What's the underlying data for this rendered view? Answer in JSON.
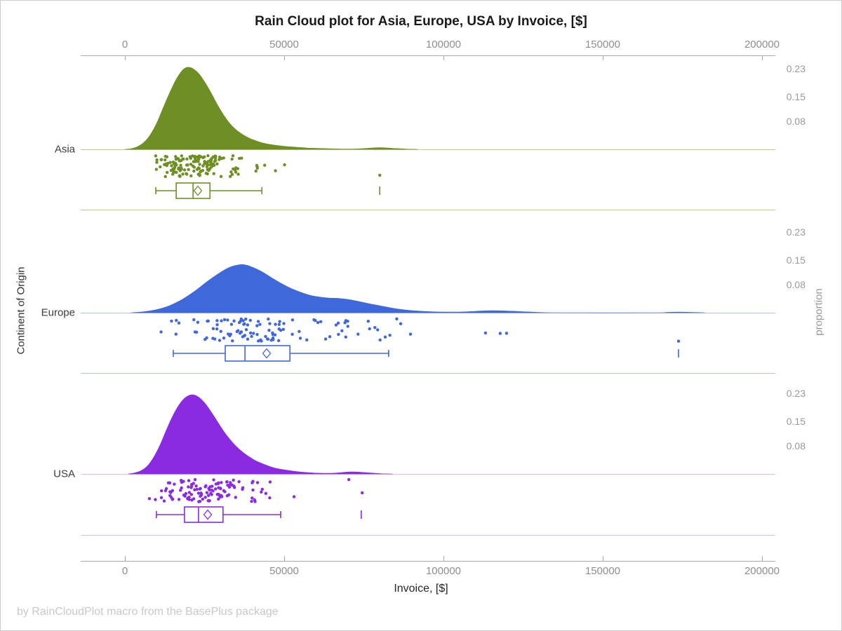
{
  "title": "Rain Cloud plot for Asia, Europe, USA by Invoice, [$]",
  "footer": "by RainCloudPlot macro from the BasePlus package",
  "axes": {
    "x_top": {
      "tick_labels": [
        "0",
        "50000",
        "100000",
        "150000",
        "200000"
      ]
    },
    "x_bottom": {
      "label": "Invoice, [$]",
      "tick_labels": [
        "0",
        "50000",
        "100000",
        "150000",
        "200000"
      ]
    },
    "y_left": {
      "label": "Continent of Origin",
      "categories": [
        "Asia",
        "Europe",
        "USA"
      ]
    },
    "y_right": {
      "label": "proportion",
      "tick_labels": [
        "0.23",
        "0.15",
        "0.08"
      ]
    }
  },
  "chart_data": {
    "type": "raincloud",
    "title": "Rain Cloud plot for Asia, Europe, USA by Invoice, [$]",
    "xlabel": "Invoice, [$]",
    "ylabel_left": "Continent of Origin",
    "ylabel_right": "proportion",
    "x_ticks": [
      0,
      50000,
      100000,
      150000,
      200000
    ],
    "x_range": [
      0,
      200000
    ],
    "proportion_ticks": [
      0.23,
      0.15,
      0.08
    ],
    "axis_color": "#a9a9a9",
    "groups": [
      {
        "name": "Asia",
        "color": "#6d8f23",
        "line_color": "#b9ca92",
        "density": [
          [
            0,
            0
          ],
          [
            2000,
            0.002
          ],
          [
            4000,
            0.008
          ],
          [
            6000,
            0.02
          ],
          [
            8000,
            0.042
          ],
          [
            10000,
            0.075
          ],
          [
            12000,
            0.118
          ],
          [
            14000,
            0.16
          ],
          [
            16000,
            0.198
          ],
          [
            18000,
            0.225
          ],
          [
            19500,
            0.234
          ],
          [
            21000,
            0.232
          ],
          [
            23000,
            0.218
          ],
          [
            25000,
            0.193
          ],
          [
            27000,
            0.162
          ],
          [
            29000,
            0.128
          ],
          [
            31000,
            0.098
          ],
          [
            33000,
            0.073
          ],
          [
            35000,
            0.055
          ],
          [
            37000,
            0.042
          ],
          [
            39000,
            0.032
          ],
          [
            41000,
            0.025
          ],
          [
            43000,
            0.019
          ],
          [
            45000,
            0.015
          ],
          [
            48000,
            0.011
          ],
          [
            51000,
            0.008
          ],
          [
            54000,
            0.006
          ],
          [
            57000,
            0.004
          ],
          [
            60000,
            0.003
          ],
          [
            64000,
            0.002
          ],
          [
            68000,
            0.001
          ],
          [
            72000,
            0.001
          ],
          [
            76000,
            0.003
          ],
          [
            80000,
            0.005
          ],
          [
            84000,
            0.003
          ],
          [
            88000,
            0.001
          ],
          [
            92000,
            0
          ]
        ],
        "box": {
          "whisker_low": 9700,
          "q1": 16100,
          "median": 21400,
          "mean": 22900,
          "q3": 26700,
          "whisker_high": 43000,
          "outliers": [
            80000
          ]
        },
        "rain": {
          "n": 150,
          "seed": 3,
          "sample_range": [
            7500,
            58000
          ],
          "outlier_points": [
            80000
          ]
        }
      },
      {
        "name": "Europe",
        "color": "#3f68da",
        "line_color": "#b3c1ea",
        "density": [
          [
            2000,
            0
          ],
          [
            6000,
            0.003
          ],
          [
            10000,
            0.009
          ],
          [
            14000,
            0.02
          ],
          [
            18000,
            0.038
          ],
          [
            22000,
            0.062
          ],
          [
            26000,
            0.09
          ],
          [
            30000,
            0.115
          ],
          [
            33000,
            0.13
          ],
          [
            36000,
            0.137
          ],
          [
            38000,
            0.136
          ],
          [
            40000,
            0.13
          ],
          [
            43000,
            0.117
          ],
          [
            46000,
            0.1
          ],
          [
            49000,
            0.084
          ],
          [
            52000,
            0.07
          ],
          [
            55000,
            0.059
          ],
          [
            58000,
            0.05
          ],
          [
            61000,
            0.045
          ],
          [
            64000,
            0.042
          ],
          [
            67000,
            0.041
          ],
          [
            70000,
            0.038
          ],
          [
            73000,
            0.033
          ],
          [
            76000,
            0.027
          ],
          [
            80000,
            0.02
          ],
          [
            84000,
            0.013
          ],
          [
            88000,
            0.008
          ],
          [
            92000,
            0.005
          ],
          [
            96000,
            0.003
          ],
          [
            100000,
            0.002
          ],
          [
            105000,
            0.002
          ],
          [
            110000,
            0.004
          ],
          [
            115000,
            0.006
          ],
          [
            120000,
            0.005
          ],
          [
            125000,
            0.003
          ],
          [
            130000,
            0.001
          ],
          [
            136000,
            0
          ],
          [
            166000,
            0
          ],
          [
            170000,
            0.001
          ],
          [
            174000,
            0.002
          ],
          [
            178000,
            0.001
          ],
          [
            182000,
            0
          ]
        ],
        "box": {
          "whisker_low": 15200,
          "q1": 31500,
          "median": 37700,
          "mean": 44500,
          "q3": 51800,
          "whisker_high": 82800,
          "outliers": [
            173800
          ]
        },
        "rain": {
          "n": 110,
          "seed": 8,
          "sample_range": [
            11000,
            96000
          ],
          "outlier_points": [
            113200,
            117800,
            119800,
            173800
          ]
        }
      },
      {
        "name": "USA",
        "color": "#8a2be2",
        "line_color": "#d9c2f0",
        "density": [
          [
            1000,
            0
          ],
          [
            3000,
            0.003
          ],
          [
            5000,
            0.009
          ],
          [
            7000,
            0.022
          ],
          [
            9000,
            0.047
          ],
          [
            11000,
            0.082
          ],
          [
            13000,
            0.125
          ],
          [
            15000,
            0.165
          ],
          [
            17000,
            0.197
          ],
          [
            19000,
            0.218
          ],
          [
            21000,
            0.226
          ],
          [
            23000,
            0.22
          ],
          [
            25000,
            0.203
          ],
          [
            27000,
            0.178
          ],
          [
            29000,
            0.15
          ],
          [
            31000,
            0.122
          ],
          [
            33000,
            0.098
          ],
          [
            35000,
            0.078
          ],
          [
            37000,
            0.062
          ],
          [
            39000,
            0.049
          ],
          [
            41000,
            0.038
          ],
          [
            43000,
            0.03
          ],
          [
            45000,
            0.023
          ],
          [
            47000,
            0.017
          ],
          [
            50000,
            0.012
          ],
          [
            53000,
            0.008
          ],
          [
            56000,
            0.005
          ],
          [
            59000,
            0.003
          ],
          [
            62000,
            0.002
          ],
          [
            65000,
            0.002
          ],
          [
            68000,
            0.004
          ],
          [
            71000,
            0.006
          ],
          [
            74000,
            0.005
          ],
          [
            77000,
            0.003
          ],
          [
            80000,
            0.001
          ],
          [
            84000,
            0
          ]
        ],
        "box": {
          "whisker_low": 9900,
          "q1": 18700,
          "median": 23100,
          "mean": 26000,
          "q3": 30800,
          "whisker_high": 48900,
          "outliers": [
            74200
          ]
        },
        "rain": {
          "n": 120,
          "seed": 5,
          "sample_range": [
            7500,
            57000
          ],
          "outlier_points": [
            70300,
            74500
          ]
        }
      }
    ]
  }
}
